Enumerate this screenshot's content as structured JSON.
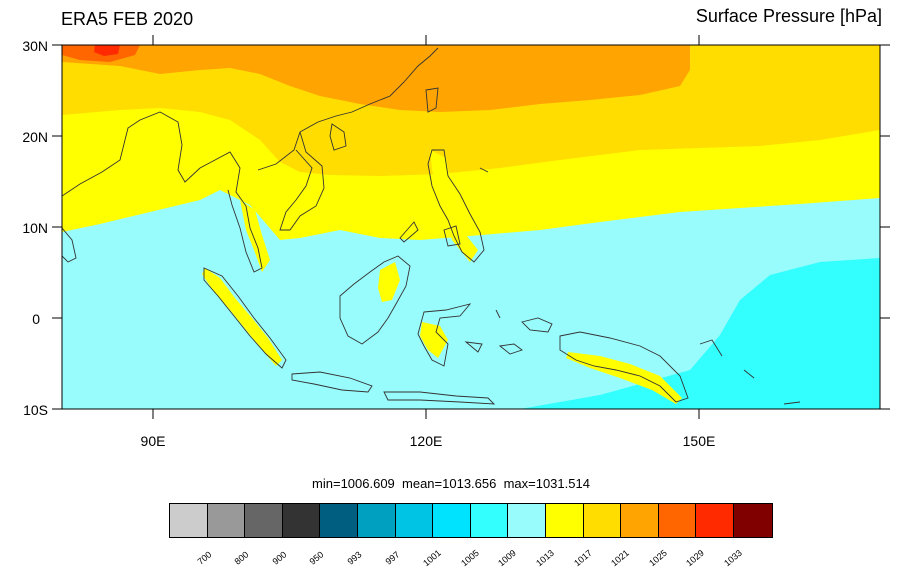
{
  "header": {
    "left_title": "ERA5 FEB 2020",
    "right_title": "Surface Pressure [hPa]"
  },
  "map": {
    "lat_labels": [
      "30N",
      "20N",
      "10N",
      "0",
      "10S"
    ],
    "lon_labels": [
      "90E",
      "120E",
      "150E"
    ],
    "colors": {
      "c1009": "#33ffff",
      "c1013": "#99fcfc",
      "c1017": "#ffff00",
      "c1021": "#ffdd00",
      "c1025": "#ffa400",
      "c1029": "#ff6600",
      "c1033": "#ff2a00",
      "coast": "#333333"
    }
  },
  "stats": {
    "text": "min=1006.609  mean=1013.656  max=1031.514"
  },
  "colorbar": {
    "colors": [
      "#cccccc",
      "#999999",
      "#666666",
      "#333333",
      "#005f80",
      "#00a0c0",
      "#00c4e4",
      "#00e3ff",
      "#33ffff",
      "#99fcfc",
      "#ffff00",
      "#ffdd00",
      "#ffa400",
      "#ff6600",
      "#ff2a00",
      "#800000"
    ],
    "labels": [
      "700",
      "800",
      "900",
      "950",
      "993",
      "997",
      "1001",
      "1005",
      "1009",
      "1013",
      "1017",
      "1021",
      "1025",
      "1029",
      "1033"
    ]
  }
}
